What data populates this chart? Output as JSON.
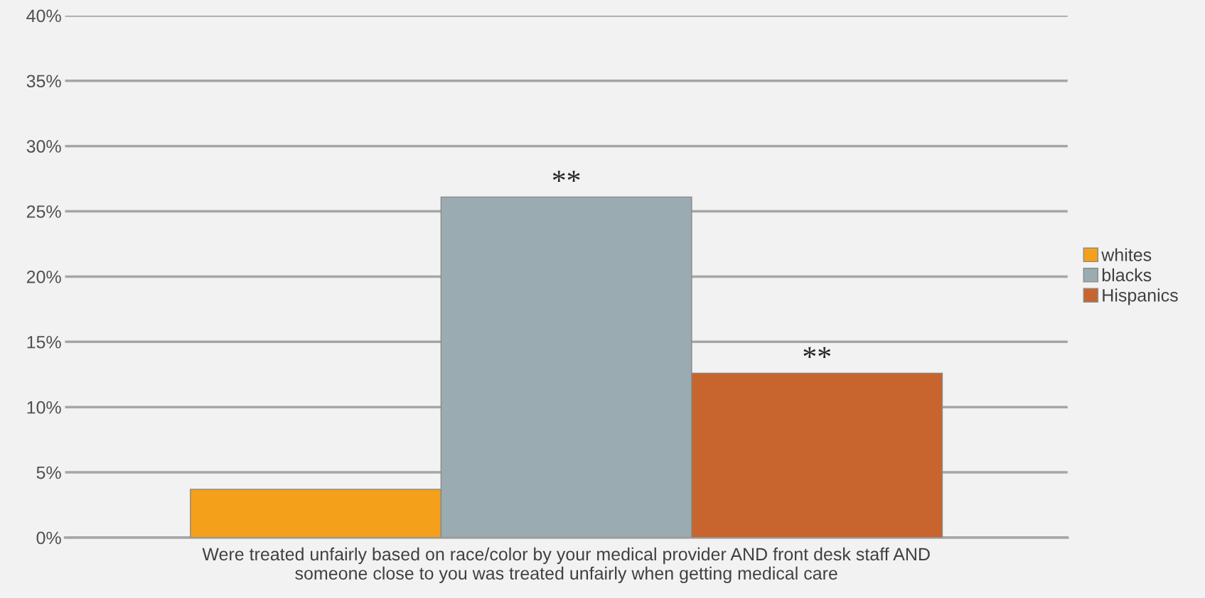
{
  "chart_data": {
    "type": "bar",
    "categories": [
      "Were treated unfairly based on race/color by your medical provider AND front desk staff AND someone close to you was treated unfairly when getting medical care"
    ],
    "series": [
      {
        "name": "whites",
        "color": "#f5a01a",
        "values": [
          3.7
        ]
      },
      {
        "name": "blacks",
        "color": "#9aabb1",
        "values": [
          26.1
        ]
      },
      {
        "name": "Hispanics",
        "color": "#c8652e",
        "values": [
          12.6
        ]
      }
    ],
    "ylim": [
      0,
      40
    ],
    "yticks": [
      {
        "value": 0,
        "label": "0%"
      },
      {
        "value": 5,
        "label": "5%"
      },
      {
        "value": 10,
        "label": "10%"
      },
      {
        "value": 15,
        "label": "15%"
      },
      {
        "value": 20,
        "label": "20%"
      },
      {
        "value": 25,
        "label": "25%"
      },
      {
        "value": 30,
        "label": "30%"
      },
      {
        "value": 35,
        "label": "35%"
      },
      {
        "value": 40,
        "label": "40%"
      }
    ],
    "annotations": [
      "**",
      "**"
    ],
    "grid": "y",
    "legend": "right"
  }
}
